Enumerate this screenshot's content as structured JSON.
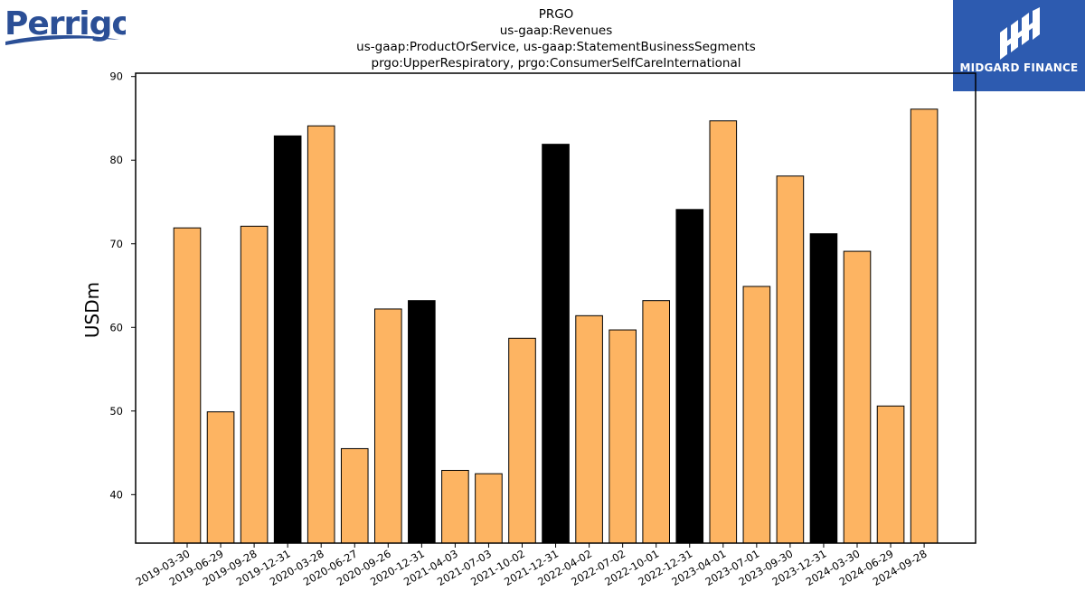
{
  "logos": {
    "left_text": "Perrigo",
    "right_text": "MIDGARD FINANCE",
    "right_bg": "#2d5bb0"
  },
  "chart_data": {
    "type": "bar",
    "title_lines": [
      "PRGO",
      "us-gaap:Revenues",
      "us-gaap:ProductOrService, us-gaap:StatementBusinessSegments",
      "prgo:UpperRespiratory, prgo:ConsumerSelfCareInternational"
    ],
    "ylabel": "USDm",
    "xlabel": "",
    "ylim": [
      34.2,
      90.4
    ],
    "yticks": [
      40,
      50,
      60,
      70,
      80,
      90
    ],
    "grid": false,
    "legend": "none",
    "colors": {
      "quarter": "#fdb462",
      "year_end": "#000000",
      "edge": "#000000"
    },
    "categories": [
      "2019-03-30",
      "2019-06-29",
      "2019-09-28",
      "2019-12-31",
      "2020-03-28",
      "2020-06-27",
      "2020-09-26",
      "2020-12-31",
      "2021-04-03",
      "2021-07-03",
      "2021-10-02",
      "2021-12-31",
      "2022-04-02",
      "2022-07-02",
      "2022-10-01",
      "2022-12-31",
      "2023-04-01",
      "2023-07-01",
      "2023-09-30",
      "2023-12-31",
      "2024-03-30",
      "2024-06-29",
      "2024-09-28"
    ],
    "values": [
      71.9,
      49.9,
      72.1,
      82.9,
      84.1,
      45.5,
      62.2,
      63.2,
      42.9,
      42.5,
      58.7,
      81.9,
      61.4,
      59.7,
      63.2,
      74.1,
      84.7,
      64.9,
      78.1,
      71.2,
      69.1,
      50.6,
      86.1
    ],
    "year_end": [
      false,
      false,
      false,
      true,
      false,
      false,
      false,
      true,
      false,
      false,
      false,
      true,
      false,
      false,
      false,
      true,
      false,
      false,
      false,
      true,
      false,
      false,
      false
    ]
  }
}
